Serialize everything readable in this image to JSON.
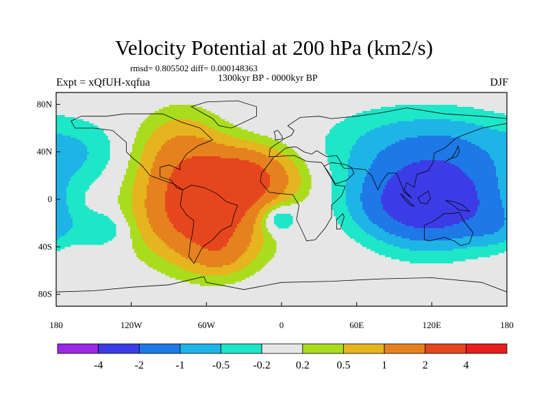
{
  "header": {
    "title": "Velocity Potential at 200 hPa (km2/s)",
    "stats": "rmsd= 0.805502 diff= 0.000148363",
    "period": "1300kyr BP - 0000kyr BP",
    "experiment": "Expt = xQfUH-xqfua",
    "season": "DJF"
  },
  "chart_data": {
    "type": "heatmap",
    "title": "Velocity Potential at 200 hPa (km2/s)",
    "subtitle": "1300kyr BP - 0000kyr BP",
    "xlabel": "",
    "ylabel": "",
    "xlim": [
      -180,
      180
    ],
    "ylim": [
      -90,
      90
    ],
    "x_ticks": [
      {
        "value": -180,
        "label": "180"
      },
      {
        "value": -120,
        "label": "120W"
      },
      {
        "value": -60,
        "label": "60W"
      },
      {
        "value": 0,
        "label": "0"
      },
      {
        "value": 60,
        "label": "60E"
      },
      {
        "value": 120,
        "label": "120E"
      },
      {
        "value": 180,
        "label": "180"
      }
    ],
    "y_ticks": [
      {
        "value": 80,
        "label": "80N"
      },
      {
        "value": 40,
        "label": "40N"
      },
      {
        "value": 0,
        "label": "0"
      },
      {
        "value": -40,
        "label": "40S"
      },
      {
        "value": -80,
        "label": "80S"
      }
    ],
    "colorbar": {
      "colors": [
        "#9b28e6",
        "#3c3ce6",
        "#1e78e6",
        "#1eb4e6",
        "#1ee6c8",
        "#e6e6e6",
        "#aadc1e",
        "#e6b41e",
        "#e6821e",
        "#e6461e",
        "#e61e1e"
      ],
      "labels": [
        "-4",
        "-2",
        "-1",
        "-0.5",
        "-0.2",
        "0.2",
        "0.5",
        "1",
        "2",
        "4"
      ]
    },
    "background_color": "#e6e6e6",
    "anomaly_centers": [
      {
        "lon": -62,
        "lat": -8,
        "value": 3.2,
        "sx": 30,
        "sy": 26
      },
      {
        "lon": -30,
        "lat": 18,
        "value": 2.2,
        "sx": 26,
        "sy": 16
      },
      {
        "lon": -80,
        "lat": 40,
        "value": 1.0,
        "sx": 22,
        "sy": 22
      },
      {
        "lon": -50,
        "lat": -45,
        "value": 0.8,
        "sx": 16,
        "sy": 12
      },
      {
        "lon": -5,
        "lat": -15,
        "value": -0.9,
        "sx": 12,
        "sy": 10
      },
      {
        "lon": 120,
        "lat": 5,
        "value": -2.5,
        "sx": 34,
        "sy": 26
      },
      {
        "lon": 115,
        "lat": -5,
        "value": -1.5,
        "sx": 30,
        "sy": 16
      },
      {
        "lon": 90,
        "lat": 45,
        "value": -0.5,
        "sx": 40,
        "sy": 22
      },
      {
        "lon": 150,
        "lat": 45,
        "value": -0.4,
        "sx": 30,
        "sy": 20
      },
      {
        "lon": -160,
        "lat": 40,
        "value": -0.4,
        "sx": 22,
        "sy": 18
      },
      {
        "lon": -145,
        "lat": -25,
        "value": -0.5,
        "sx": 16,
        "sy": 10
      },
      {
        "lon": 170,
        "lat": -22,
        "value": -0.6,
        "sx": 14,
        "sy": 12
      }
    ]
  }
}
